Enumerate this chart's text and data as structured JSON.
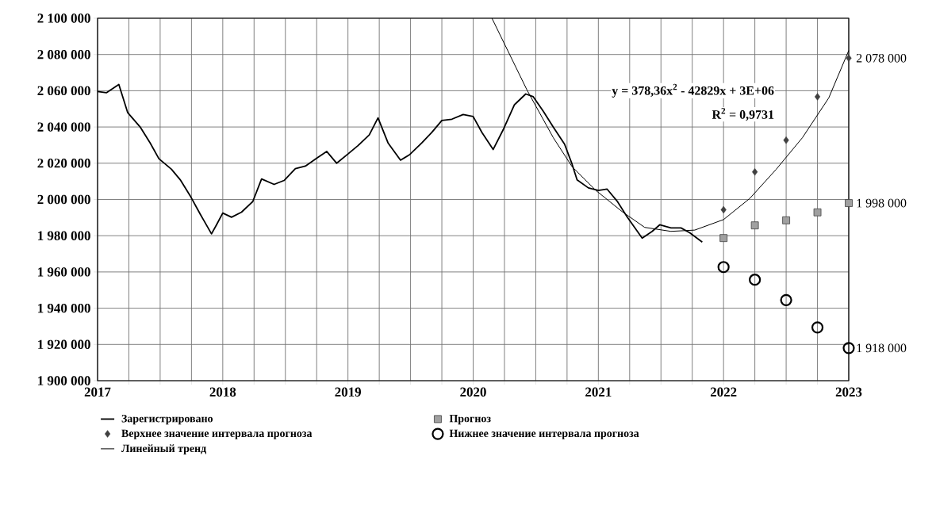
{
  "chart_data": {
    "type": "line",
    "xlim": [
      2017,
      2023
    ],
    "ylim": [
      1900000,
      2100000
    ],
    "xticks": [
      2017,
      2018,
      2019,
      2020,
      2021,
      2022,
      2023
    ],
    "yticks": [
      {
        "value": 1900000,
        "label": "1 900 000"
      },
      {
        "value": 1920000,
        "label": "1 920 000"
      },
      {
        "value": 1940000,
        "label": "1 940 000"
      },
      {
        "value": 1960000,
        "label": "1 960 000"
      },
      {
        "value": 1980000,
        "label": "1 980 000"
      },
      {
        "value": 2000000,
        "label": "2 000 000"
      },
      {
        "value": 2020000,
        "label": "2 020 000"
      },
      {
        "value": 2040000,
        "label": "2 040 000"
      },
      {
        "value": 2060000,
        "label": "2 060 000"
      },
      {
        "value": 2080000,
        "label": "2 080 000"
      },
      {
        "value": 2100000,
        "label": "2 100 000"
      }
    ],
    "grid": true,
    "legend": "bottom",
    "annotations": [
      "y = 378,36x$^{2}$ - 42829x + 3E+06",
      "R$^{2}$ = 0,9731"
    ],
    "series": [
      {
        "name": "Зарегистрировано",
        "marker": "none",
        "line_style": "solid",
        "color": "#000000",
        "x": [
          2017.0,
          2017.07,
          2017.17,
          2017.24,
          2017.34,
          2017.42,
          2017.49,
          2017.59,
          2017.66,
          2017.74,
          2017.82,
          2017.91,
          2017.95,
          2018.0,
          2018.07,
          2018.15,
          2018.24,
          2018.31,
          2018.41,
          2018.49,
          2018.58,
          2018.66,
          2018.75,
          2018.83,
          2018.91,
          2019.0,
          2019.08,
          2019.17,
          2019.24,
          2019.32,
          2019.42,
          2019.49,
          2019.59,
          2019.67,
          2019.75,
          2019.83,
          2019.92,
          2020.0,
          2020.07,
          2020.16,
          2020.24,
          2020.33,
          2020.42,
          2020.48,
          2020.56,
          2020.64,
          2020.73,
          2020.79,
          2020.83,
          2020.92,
          2021.0,
          2021.07,
          2021.15,
          2021.23,
          2021.35,
          2021.43,
          2021.49,
          2021.58,
          2021.66,
          2021.73,
          2021.83
        ],
        "values": [
          2059600,
          2058900,
          2063500,
          2048000,
          2040000,
          2031200,
          2022500,
          2016700,
          2010900,
          2002000,
          1991900,
          1981000,
          1986000,
          1992500,
          1990200,
          1993000,
          1998900,
          2011300,
          2008300,
          2010500,
          2017000,
          2018400,
          2022800,
          2026500,
          2020000,
          2025100,
          2029700,
          2035600,
          2045000,
          2031200,
          2021700,
          2024600,
          2031200,
          2037000,
          2043600,
          2044300,
          2046900,
          2045800,
          2037000,
          2027600,
          2038500,
          2052300,
          2058200,
          2056700,
          2048700,
          2039900,
          2030500,
          2019500,
          2010800,
          2006400,
          2005000,
          2005700,
          1999100,
          1990400,
          1978700,
          1982400,
          1986000,
          1984300,
          1984300,
          1981600,
          1976500
        ]
      },
      {
        "name": "Прогноз",
        "type": "scatter",
        "marker": "square",
        "color": "#a0a0a0",
        "x": [
          2022.0,
          2022.25,
          2022.5,
          2022.75,
          2023.0
        ],
        "values": [
          1978700,
          1985700,
          1988500,
          1992900,
          1998000
        ],
        "value_labels": [
          null,
          null,
          null,
          null,
          "1 998 000"
        ]
      },
      {
        "name": "Верхнее значение интервала прогноза",
        "type": "scatter",
        "marker": "diamond",
        "color": "#404040",
        "x": [
          2022.0,
          2022.25,
          2022.5,
          2022.75,
          2023.0
        ],
        "values": [
          1994300,
          2015200,
          2032700,
          2056700,
          2078000
        ],
        "value_labels": [
          null,
          null,
          null,
          null,
          "2 078 000"
        ]
      },
      {
        "name": "Нижнее значение интервала прогноза",
        "type": "scatter",
        "marker": "circle",
        "color": "#000000",
        "x": [
          2022.0,
          2022.25,
          2022.5,
          2022.75,
          2023.0
        ],
        "values": [
          1962700,
          1955700,
          1944500,
          1929400,
          1918000
        ],
        "value_labels": [
          null,
          null,
          null,
          null,
          "1 918 000"
        ]
      },
      {
        "name": "Линейный тренд",
        "marker": "none",
        "line_style": "solid",
        "color": "#000000",
        "x": [
          2020.15,
          2020.43,
          2020.64,
          2020.79,
          2020.98,
          2021.19,
          2021.37,
          2021.58,
          2021.77,
          2022.0,
          2022.21,
          2022.42,
          2022.63,
          2022.84,
          2023.0
        ],
        "values": [
          2100000,
          2060400,
          2034100,
          2018100,
          2005000,
          1993300,
          1984600,
          1982400,
          1983100,
          1988900,
          2000600,
          2016600,
          2034100,
          2056000,
          2082200
        ]
      }
    ]
  }
}
